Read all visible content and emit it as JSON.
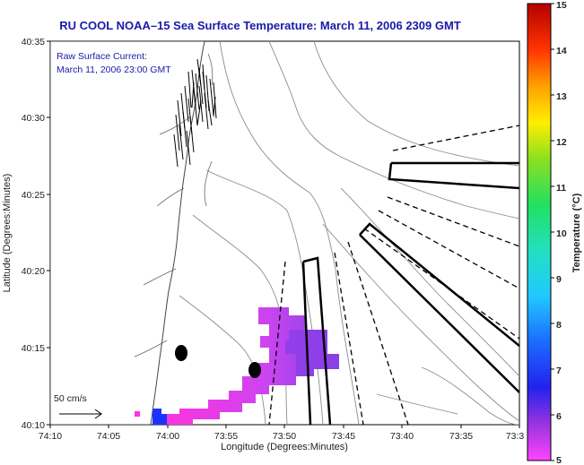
{
  "title": "RU COOL  NOAA–15  Sea Surface Temperature:  March 11, 2006 2309 GMT",
  "annotation": {
    "line1": "Raw Surface Current:",
    "line2": "March 11, 2006 23:00 GMT"
  },
  "scale_label": "50 cm/s",
  "x_axis": {
    "label": "Longitude (Degrees:Minutes)",
    "ticks": [
      "74:10",
      "74:05",
      "74:00",
      "73:55",
      "73:50",
      "73:45",
      "73:40",
      "73:35",
      "73:3"
    ]
  },
  "y_axis": {
    "label": "Latitude (Degrees:Minutes)",
    "ticks": [
      "40:35",
      "40:30",
      "40:25",
      "40:20",
      "40:15",
      "40:10"
    ]
  },
  "colorbar": {
    "label": "Temperature (°C)",
    "ticks": [
      "15",
      "14",
      "13",
      "12",
      "11",
      "10",
      "9",
      "8",
      "7",
      "6",
      "5"
    ],
    "min": 5,
    "max": 15
  },
  "colors": {
    "title": "#1a1aa8",
    "land": "#ffffff",
    "coast": "#444444",
    "sst_warm": "#8a2be2",
    "sst_cool": "#ff2bd6"
  }
}
